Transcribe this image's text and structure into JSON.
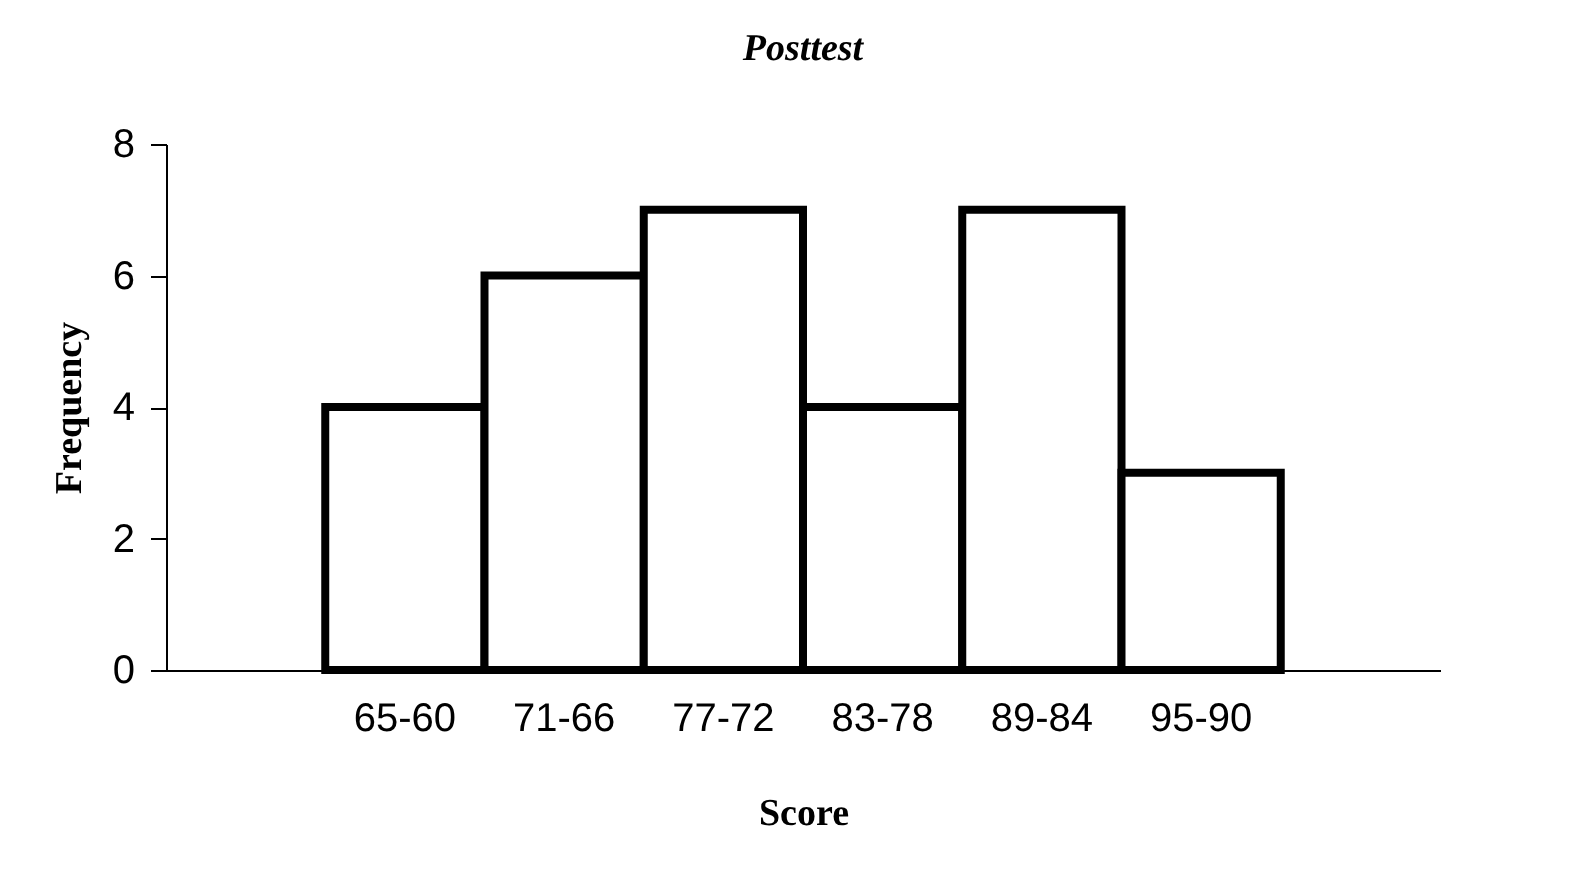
{
  "chart_data": {
    "type": "bar",
    "title": "Posttest",
    "xlabel": "Score",
    "ylabel": "Frequency",
    "categories": [
      null,
      "65-60",
      "71-66",
      "77-72",
      "83-78",
      "89-84",
      "95-90",
      null
    ],
    "values": [
      null,
      4,
      6,
      7,
      4,
      7,
      3,
      null
    ],
    "color": "#ffffff",
    "ylim": [
      0,
      8
    ],
    "yticks": [
      0,
      2,
      4,
      6,
      8
    ],
    "grid": false,
    "legend": false
  }
}
